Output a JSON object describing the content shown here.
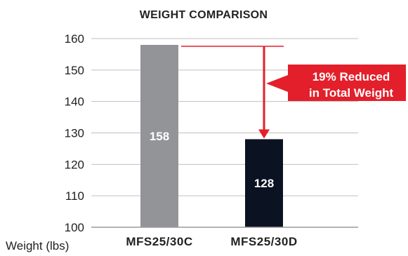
{
  "chart_data": {
    "type": "bar",
    "title": "WEIGHT COMPARISON",
    "ylabel": "Weight (lbs)",
    "xlabel": "",
    "categories": [
      "MFS25/30C",
      "MFS25/30D"
    ],
    "values": [
      158,
      128
    ],
    "bar_colors": [
      "#939498",
      "#0b1221"
    ],
    "ylim": [
      100,
      160
    ],
    "yticks": [
      100,
      110,
      120,
      130,
      140,
      150,
      160
    ],
    "grid": true,
    "accent_color": "#e31f2b",
    "annotation": {
      "lines": [
        "19% Reduced",
        "in Total Weight"
      ],
      "from_value": 158,
      "to_value": 128
    }
  }
}
